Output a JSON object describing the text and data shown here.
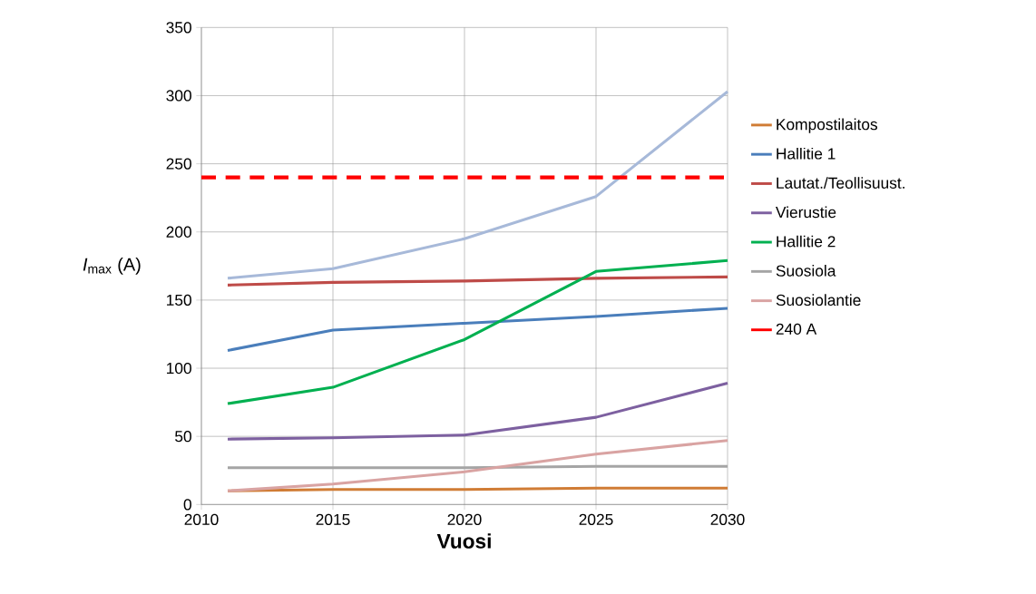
{
  "chart_data": {
    "type": "line",
    "xlabel": "Vuosi",
    "ylabel": "*I*$_{max}$ (A)",
    "x": [
      2011,
      2015,
      2020,
      2025,
      2030
    ],
    "xlim": [
      2010,
      2030
    ],
    "xticks": [
      2010,
      2015,
      2020,
      2025,
      2030
    ],
    "ylim": [
      0,
      350
    ],
    "yticks": [
      0,
      50,
      100,
      150,
      200,
      250,
      300,
      350
    ],
    "grid": true,
    "legend": "right",
    "marker": "none",
    "line_style": "solid",
    "series": [
      {
        "name": "Kompostilaitos",
        "color": "#d07c35",
        "values": [
          10,
          11,
          11,
          12,
          12
        ]
      },
      {
        "name": "Hallitie 1",
        "color": "#4a7ebb",
        "values": [
          113,
          128,
          133,
          138,
          144
        ]
      },
      {
        "name": "Lautat./Teollisuust.",
        "color": "#be4b48",
        "values": [
          161,
          163,
          164,
          166,
          167
        ]
      },
      {
        "name": "Vierustie",
        "color": "#7d60a0",
        "values": [
          48,
          49,
          51,
          64,
          89
        ]
      },
      {
        "name": "Hallitie 2",
        "color": "#00b050",
        "values": [
          74,
          86,
          121,
          171,
          179
        ]
      },
      {
        "name": "Suosiola",
        "color": "#a5a5a5",
        "values": [
          27,
          27,
          27,
          28,
          28
        ]
      },
      {
        "color": "#a7b9d9",
        "values": [
          166,
          173,
          195,
          226,
          303
        ]
      },
      {
        "name": "Suosiolantie",
        "color": "#d9a3a2",
        "values": [
          10,
          15,
          24,
          37,
          47
        ]
      },
      {
        "name": "240 A",
        "color": "#ff0000",
        "line_style": "dashed",
        "x": [
          2010,
          2030
        ],
        "values": [
          240,
          240
        ]
      }
    ]
  }
}
